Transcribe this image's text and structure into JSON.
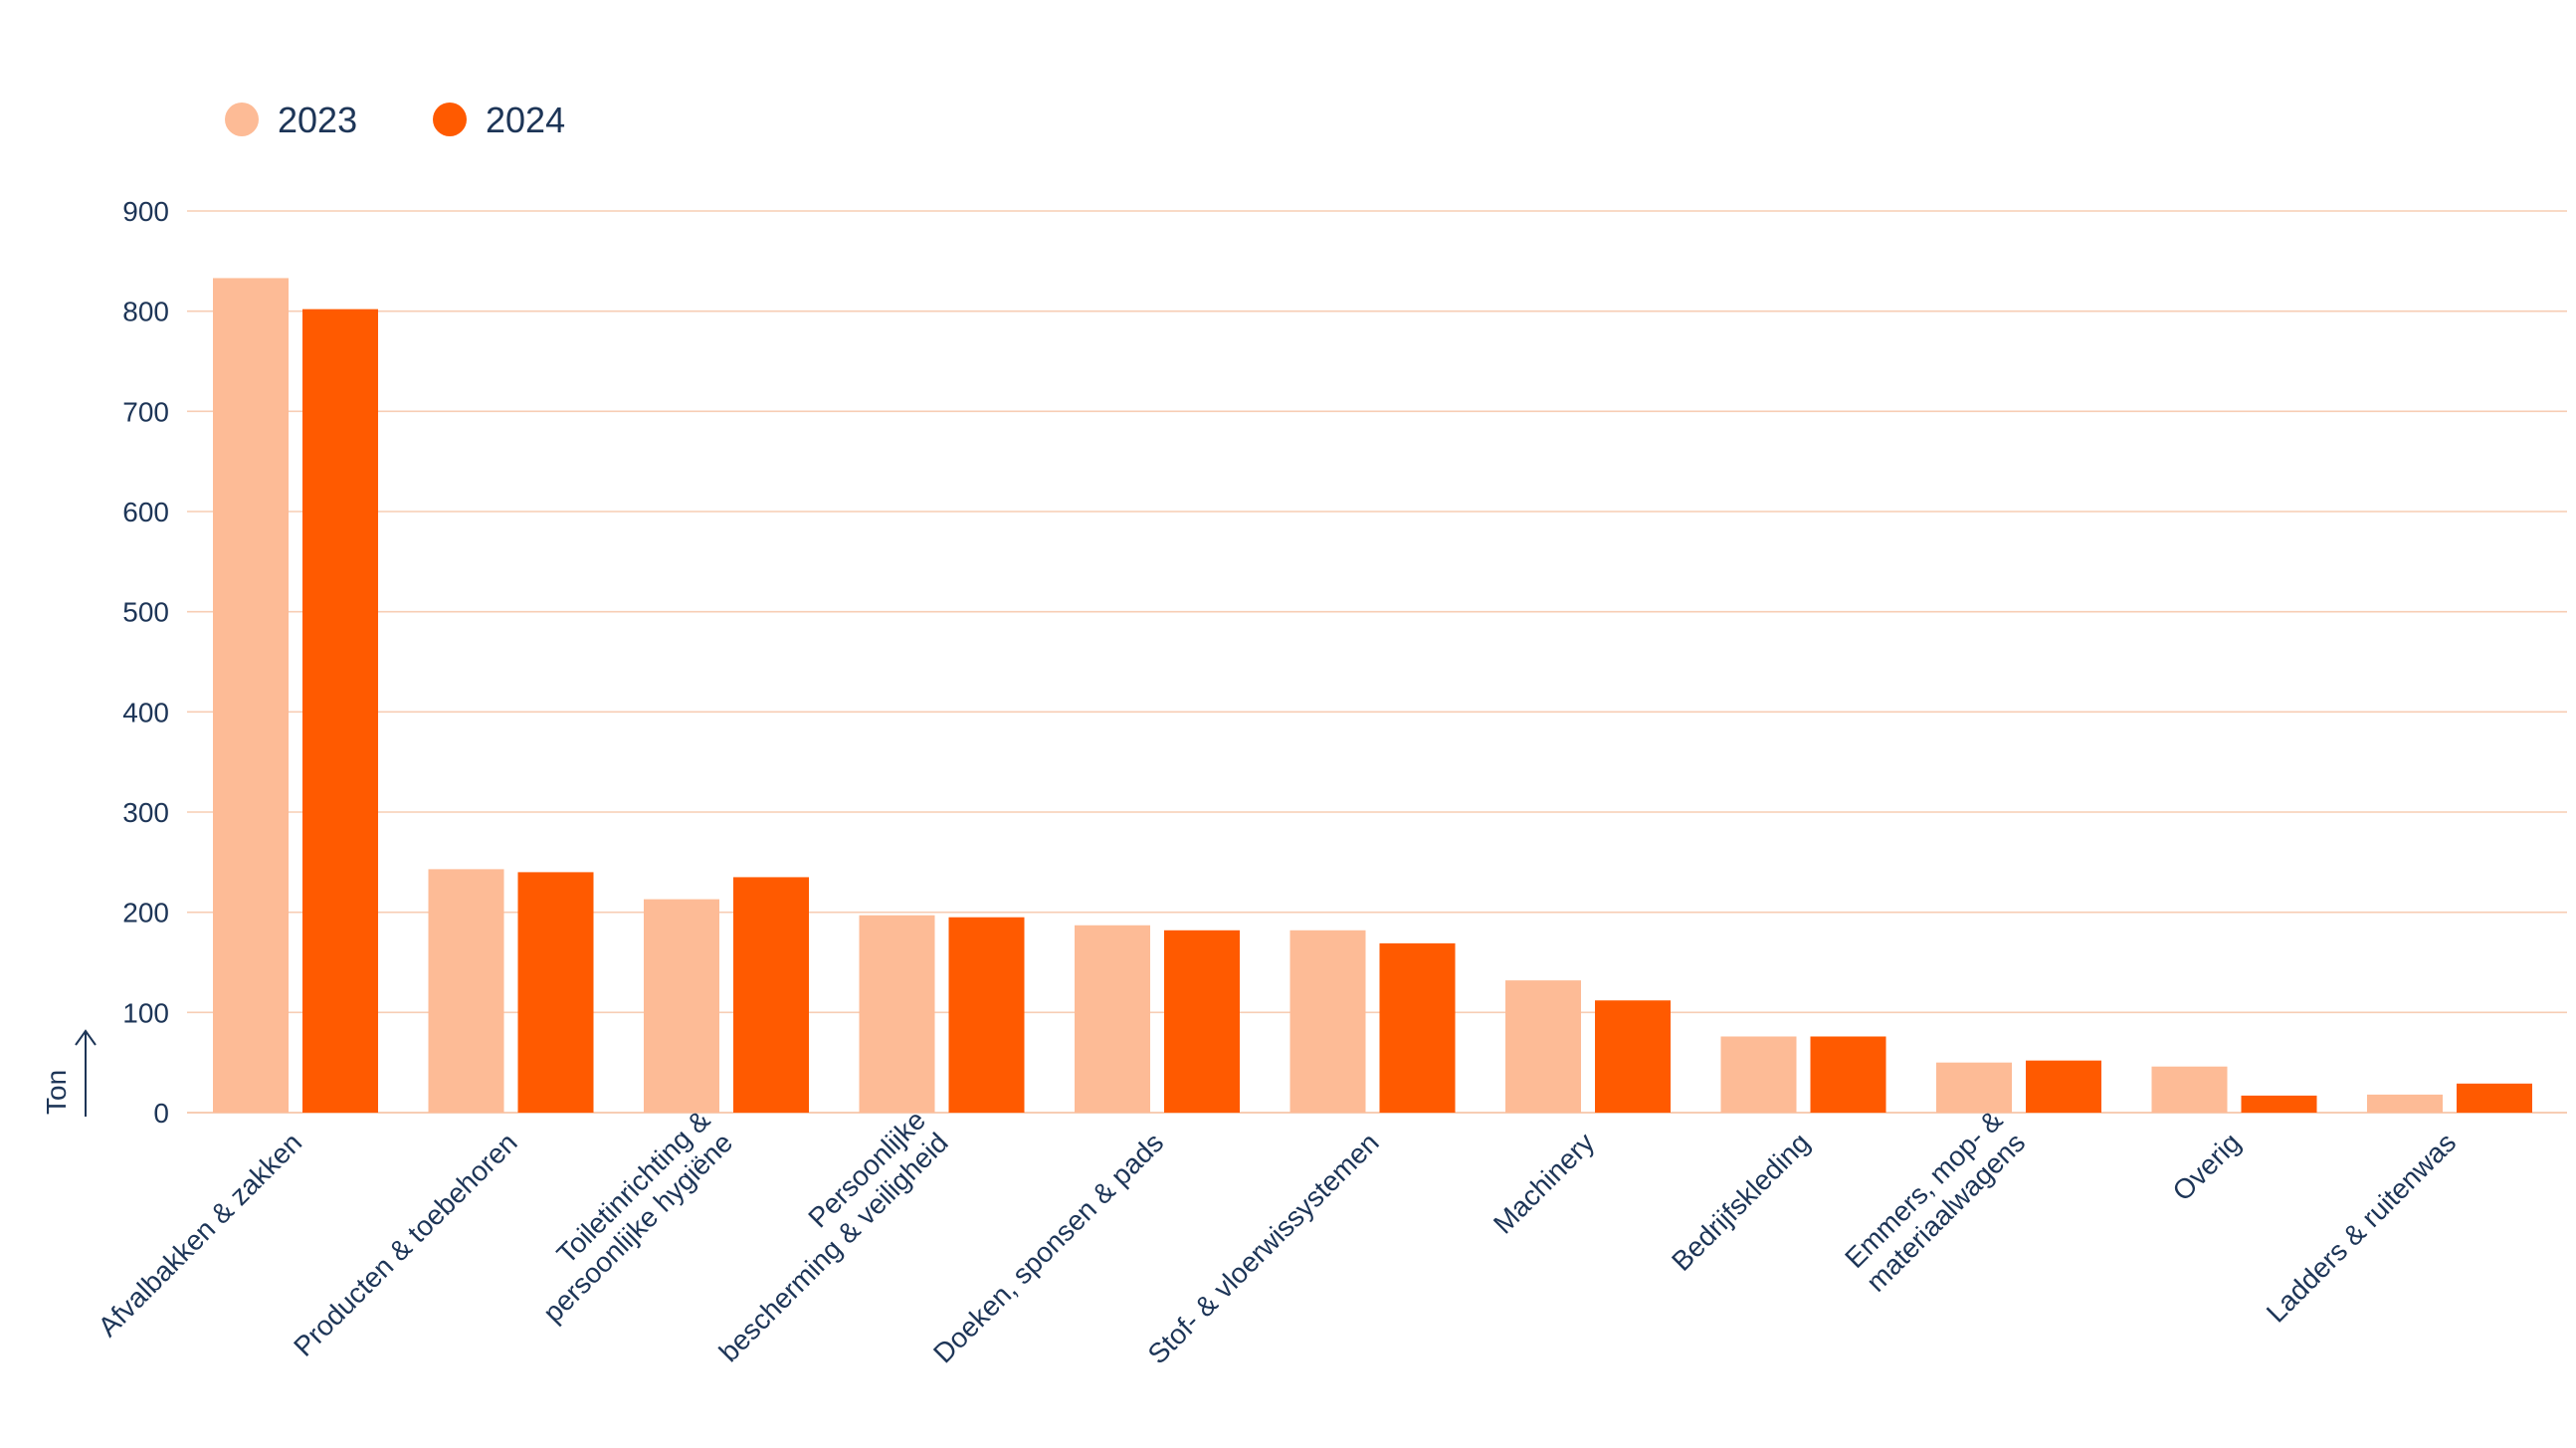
{
  "chart_data": {
    "type": "bar",
    "ylabel": "Ton",
    "ylim": [
      0,
      900
    ],
    "yticks": [
      0,
      100,
      200,
      300,
      400,
      500,
      600,
      700,
      800,
      900
    ],
    "grid": true,
    "legend_position": "top-left",
    "categories": [
      "Afvalbakken & zakken",
      "Producten & toebehoren",
      "Toiletinrichting & persoonlijke hygiëne",
      "Persoonlijke bescherming & veiligheid",
      "Doeken, sponsen & pads",
      "Stof- & vloerwissystemen",
      "Machinery",
      "Bedrijfskleding",
      "Emmers, mop- & materiaalwagens",
      "Overig",
      "Ladders & ruitenwas"
    ],
    "category_lines": [
      [
        "Afvalbakken & zakken"
      ],
      [
        "Producten & toebehoren"
      ],
      [
        "Toiletinrichting &",
        "persoonlijke hygiëne"
      ],
      [
        "Persoonlijke",
        "bescherming & veiligheid"
      ],
      [
        "Doeken, sponsen & pads"
      ],
      [
        "Stof- & vloerwissystemen"
      ],
      [
        "Machinery"
      ],
      [
        "Bedrijfskleding"
      ],
      [
        "Emmers, mop- &",
        "materiaalwagens"
      ],
      [
        "Overig"
      ],
      [
        "Ladders & ruitenwas"
      ]
    ],
    "series": [
      {
        "name": "2023",
        "color": "#fdbb96",
        "values": [
          833,
          243,
          213,
          197,
          187,
          182,
          132,
          76,
          50,
          46,
          18
        ]
      },
      {
        "name": "2024",
        "color": "#ff5a00",
        "values": [
          802,
          240,
          235,
          195,
          182,
          169,
          112,
          76,
          52,
          17,
          29
        ]
      }
    ],
    "gridline_color": "#f7cdb4",
    "text_color": "#1d3557"
  }
}
